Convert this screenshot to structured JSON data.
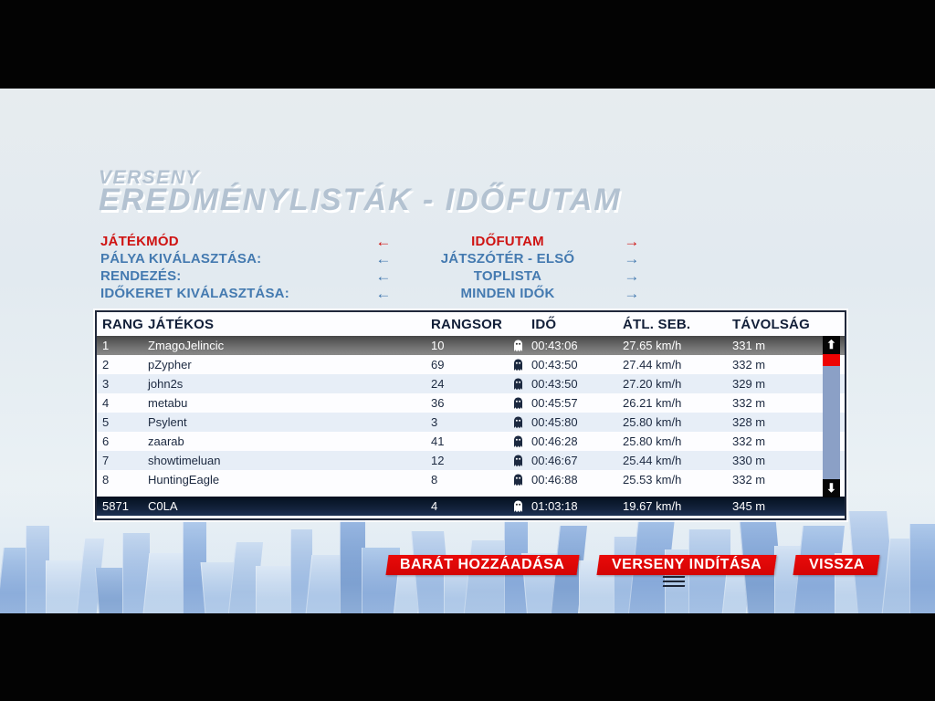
{
  "title": {
    "small": "VERSENY",
    "large": "EREDMÉNYLISTÁK - IDŐFUTAM"
  },
  "icons": {
    "left_arrow": "←",
    "right_arrow": "→",
    "scroll_up": "⬆",
    "scroll_down": "⬇",
    "ghost": "ghost-replay"
  },
  "options": [
    {
      "label": "JÁTÉKMÓD",
      "value": "IDŐFUTAM",
      "selected": true
    },
    {
      "label": "PÁLYA KIVÁLASZTÁSA:",
      "value": "JÁTSZÓTÉR - ELSŐ",
      "selected": false
    },
    {
      "label": "RENDEZÉS:",
      "value": "TOPLISTA",
      "selected": false
    },
    {
      "label": "IDŐKERET KIVÁLASZTÁSA:",
      "value": "MINDEN IDŐK",
      "selected": false
    }
  ],
  "table": {
    "headers": {
      "rank": "RANG",
      "player": "JÁTÉKOS",
      "ladder": "RANGSOR",
      "time": "IDŐ",
      "avg_speed": "ÁTL. SEB.",
      "distance": "TÁVOLSÁG"
    },
    "rows": [
      {
        "rank": "1",
        "player": "ZmagoJelincic",
        "ladder": "10",
        "time": "00:43:06",
        "avg_speed": "27.65 km/h",
        "distance": "331 m"
      },
      {
        "rank": "2",
        "player": "pZypher",
        "ladder": "69",
        "time": "00:43:50",
        "avg_speed": "27.44 km/h",
        "distance": "332 m"
      },
      {
        "rank": "3",
        "player": "john2s",
        "ladder": "24",
        "time": "00:43:50",
        "avg_speed": "27.20 km/h",
        "distance": "329 m"
      },
      {
        "rank": "4",
        "player": "metabu",
        "ladder": "36",
        "time": "00:45:57",
        "avg_speed": "26.21 km/h",
        "distance": "332 m"
      },
      {
        "rank": "5",
        "player": "Psylent",
        "ladder": "3",
        "time": "00:45:80",
        "avg_speed": "25.80 km/h",
        "distance": "328 m"
      },
      {
        "rank": "6",
        "player": "zaarab",
        "ladder": "41",
        "time": "00:46:28",
        "avg_speed": "25.80 km/h",
        "distance": "332 m"
      },
      {
        "rank": "7",
        "player": "showtimeluan",
        "ladder": "12",
        "time": "00:46:67",
        "avg_speed": "25.44 km/h",
        "distance": "330 m"
      },
      {
        "rank": "8",
        "player": "HuntingEagle",
        "ladder": "8",
        "time": "00:46:88",
        "avg_speed": "25.53 km/h",
        "distance": "332 m"
      }
    ],
    "player_row": {
      "rank": "5871",
      "player": "C0LA",
      "ladder": "4",
      "time": "01:03:18",
      "avg_speed": "19.67 km/h",
      "distance": "345 m"
    }
  },
  "buttons": [
    {
      "label": "BARÁT HOZZÁADÁSA"
    },
    {
      "label": "VERSENY INDÍTÁSA"
    },
    {
      "label": "VISSZA"
    }
  ],
  "colors": {
    "accent_red": "#d40404",
    "option_blue": "#447ab0",
    "header_navy": "#121f38",
    "selected_row_gray": "#6e6e6e",
    "player_row_navy": "#12213a",
    "scroll_thumb_red": "#ee0202",
    "scroll_track_blue": "#8ba0c6"
  }
}
